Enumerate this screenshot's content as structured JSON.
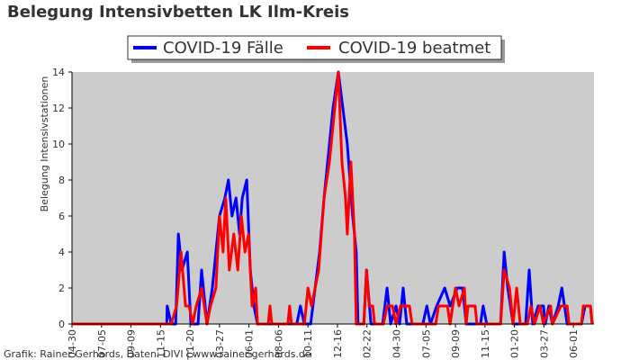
{
  "chart_data": {
    "type": "line",
    "title": "Belegung Intensivbetten LK Ilm-Kreis",
    "y_label": "Belegung Intensivstationen",
    "credit": "Grafik: Rainer Gerhards, Daten: DIVI | www.rainer-gerhards.de",
    "xlim": [
      0,
      1168
    ],
    "xticks": [
      {
        "value": 0,
        "label": "04-30"
      },
      {
        "value": 66,
        "label": "07-05"
      },
      {
        "value": 132,
        "label": "09-09"
      },
      {
        "value": 198,
        "label": "11-15"
      },
      {
        "value": 264,
        "label": "01-20"
      },
      {
        "value": 330,
        "label": "03-27"
      },
      {
        "value": 396,
        "label": "06-01"
      },
      {
        "value": 462,
        "label": "08-06"
      },
      {
        "value": 528,
        "label": "10-11"
      },
      {
        "value": 594,
        "label": "12-16"
      },
      {
        "value": 660,
        "label": "02-22"
      },
      {
        "value": 726,
        "label": "04-30"
      },
      {
        "value": 792,
        "label": "07-05"
      },
      {
        "value": 858,
        "label": "09-09"
      },
      {
        "value": 924,
        "label": "11-15"
      },
      {
        "value": 990,
        "label": "01-20"
      },
      {
        "value": 1056,
        "label": "03-27"
      },
      {
        "value": 1122,
        "label": "06-01"
      }
    ],
    "ylim": [
      0,
      14
    ],
    "yticks": [
      0,
      2,
      4,
      6,
      8,
      10,
      12,
      14
    ],
    "background": "#cccccc",
    "series": [
      {
        "name": "COVID-19 Fälle",
        "color": "#0000ff",
        "x": [
          0,
          212,
          213,
          222,
          232,
          238,
          246,
          258,
          266,
          282,
          290,
          302,
          314,
          322,
          330,
          342,
          350,
          358,
          367,
          375,
          381,
          391,
          399,
          407,
          415,
          503,
          511,
          520,
          534,
          544,
          554,
          564,
          576,
          584,
          596,
          606,
          616,
          628,
          636,
          640,
          653,
          659,
          669,
          695,
          705,
          713,
          725,
          733,
          741,
          749,
          785,
          794,
          802,
          816,
          834,
          846,
          862,
          874,
          882,
          914,
          920,
          928,
          959,
          967,
          975,
          987,
          1015,
          1023,
          1031,
          1043,
          1055,
          1059,
          1067,
          1075,
          1088,
          1096,
          1108,
          1140,
          1148,
          1160,
          1164
        ],
        "values": [
          0,
          0,
          1,
          0,
          0,
          5,
          3,
          4,
          0,
          0,
          3,
          0,
          2,
          4,
          6,
          7,
          8,
          6,
          7,
          5,
          7,
          8,
          3,
          1,
          0,
          0,
          1,
          0,
          0,
          2,
          4,
          7,
          10,
          12,
          14,
          12,
          10,
          6,
          4,
          0,
          0,
          3,
          0,
          0,
          2,
          0,
          1,
          0,
          2,
          0,
          0,
          1,
          0,
          1,
          2,
          1,
          2,
          2,
          0,
          0,
          1,
          0,
          0,
          4,
          2,
          0,
          0,
          3,
          0,
          1,
          1,
          0,
          1,
          0,
          1,
          2,
          0,
          0,
          1,
          1,
          0
        ]
      },
      {
        "name": "COVID-19 beatmet",
        "color": "#ff0000",
        "x": [
          0,
          222,
          234,
          244,
          254,
          262,
          270,
          278,
          290,
          302,
          310,
          322,
          330,
          338,
          344,
          352,
          362,
          371,
          379,
          387,
          395,
          403,
          411,
          415,
          439,
          443,
          447,
          483,
          487,
          491,
          520,
          528,
          536,
          552,
          564,
          576,
          584,
          596,
          604,
          612,
          616,
          624,
          632,
          636,
          653,
          659,
          665,
          673,
          677,
          697,
          705,
          717,
          725,
          735,
          755,
          761,
          814,
          820,
          840,
          846,
          858,
          866,
          878,
          882,
          886,
          902,
          906,
          959,
          967,
          979,
          987,
          995,
          1003,
          1019,
          1027,
          1035,
          1047,
          1055,
          1071,
          1075,
          1094,
          1108,
          1112,
          1140,
          1144,
          1160,
          1164
        ],
        "values": [
          0,
          0,
          1,
          4,
          1,
          1,
          0,
          1,
          2,
          0,
          1,
          2,
          6,
          4,
          7,
          3,
          5,
          3,
          6,
          4,
          5,
          1,
          2,
          0,
          0,
          1,
          0,
          0,
          1,
          0,
          0,
          2,
          1,
          3,
          7,
          9,
          11,
          14,
          9,
          7,
          5,
          9,
          5,
          0,
          0,
          3,
          1,
          1,
          0,
          0,
          1,
          1,
          0,
          1,
          1,
          0,
          0,
          1,
          1,
          0,
          2,
          1,
          2,
          0,
          1,
          1,
          0,
          0,
          3,
          2,
          0,
          2,
          0,
          0,
          1,
          0,
          1,
          0,
          1,
          0,
          1,
          1,
          0,
          0,
          1,
          1,
          0
        ]
      }
    ]
  }
}
